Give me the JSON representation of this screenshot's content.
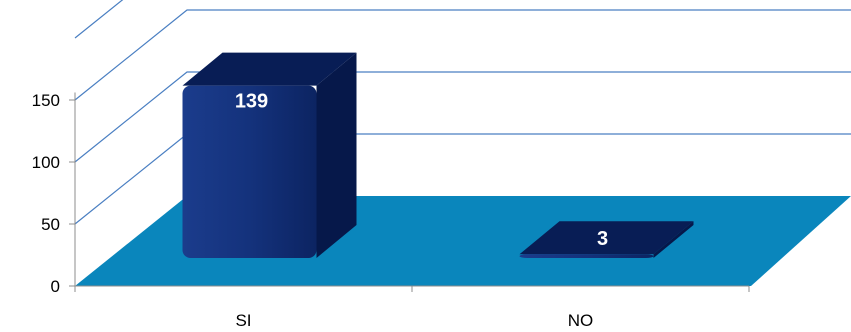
{
  "chart_data": {
    "type": "bar",
    "categories": [
      "SI",
      "NO"
    ],
    "values": [
      139,
      3
    ],
    "value_labels": [
      "139",
      "3"
    ],
    "y_ticks": [
      0,
      50,
      100,
      150
    ],
    "y_tick_labels": [
      "0",
      "50",
      "100",
      "150"
    ],
    "ylim": [
      0,
      200
    ],
    "grid": true,
    "legend": "none",
    "style": "3d-column",
    "colors": {
      "bar": "#0F2A6E",
      "bar_dark": "#06184A",
      "bar_top": "#081D55",
      "floor": "#0A86BC",
      "grid": "#4A7FC2",
      "axis": "#8C8C8C"
    }
  }
}
